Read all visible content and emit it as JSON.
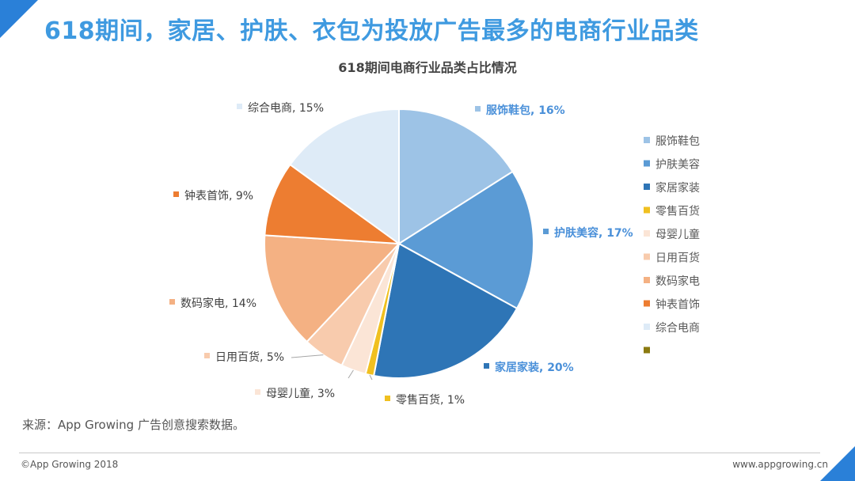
{
  "page": {
    "title": "618期间，家居、护肤、衣包为投放广告最多的电商行业品类",
    "source": "来源：App Growing 广告创意搜索数据。",
    "copyright": "©App Growing 2018",
    "website": "www.appgrowing.cn"
  },
  "chart_data": {
    "type": "pie",
    "title": "618期间电商行业品类占比情况",
    "unit": "%",
    "legend_position": "right",
    "series": [
      {
        "name": "服饰鞋包",
        "value": 16,
        "label": "服饰鞋包, 16%",
        "color": "#9dc3e6",
        "label_color": "#4a90d9",
        "bold": true
      },
      {
        "name": "护肤美容",
        "value": 17,
        "label": "护肤美容, 17%",
        "color": "#5b9bd5",
        "label_color": "#4a90d9",
        "bold": true
      },
      {
        "name": "家居家装",
        "value": 20,
        "label": "家居家装, 20%",
        "color": "#2e75b6",
        "label_color": "#4a90d9",
        "bold": true
      },
      {
        "name": "零售百货",
        "value": 1,
        "label": "零售百货, 1%",
        "color": "#f0c020",
        "label_color": "#404040",
        "bold": false
      },
      {
        "name": "母婴儿童",
        "value": 3,
        "label": "母婴儿童, 3%",
        "color": "#fbe5d6",
        "label_color": "#404040",
        "bold": false
      },
      {
        "name": "日用百货",
        "value": 5,
        "label": "日用百货, 5%",
        "color": "#f8cbad",
        "label_color": "#404040",
        "bold": false
      },
      {
        "name": "数码家电",
        "value": 14,
        "label": "数码家电, 14%",
        "color": "#f4b183",
        "label_color": "#404040",
        "bold": false
      },
      {
        "name": "钟表首饰",
        "value": 9,
        "label": "钟表首饰, 9%",
        "color": "#ed7d31",
        "label_color": "#404040",
        "bold": false
      },
      {
        "name": "综合电商",
        "value": 15,
        "label": "综合电商, 15%",
        "color": "#deebf7",
        "label_color": "#404040",
        "bold": false
      }
    ],
    "legend": [
      {
        "name": "服饰鞋包",
        "color": "#9dc3e6"
      },
      {
        "name": "护肤美容",
        "color": "#5b9bd5"
      },
      {
        "name": "家居家装",
        "color": "#2e75b6"
      },
      {
        "name": "零售百货",
        "color": "#f0c020"
      },
      {
        "name": "母婴儿童",
        "color": "#fbe5d6"
      },
      {
        "name": "日用百货",
        "color": "#f8cbad"
      },
      {
        "name": "数码家电",
        "color": "#f4b183"
      },
      {
        "name": "钟表首饰",
        "color": "#ed7d31"
      },
      {
        "name": "综合电商",
        "color": "#deebf7"
      },
      {
        "name": "",
        "color": "#8b7a10"
      }
    ]
  }
}
